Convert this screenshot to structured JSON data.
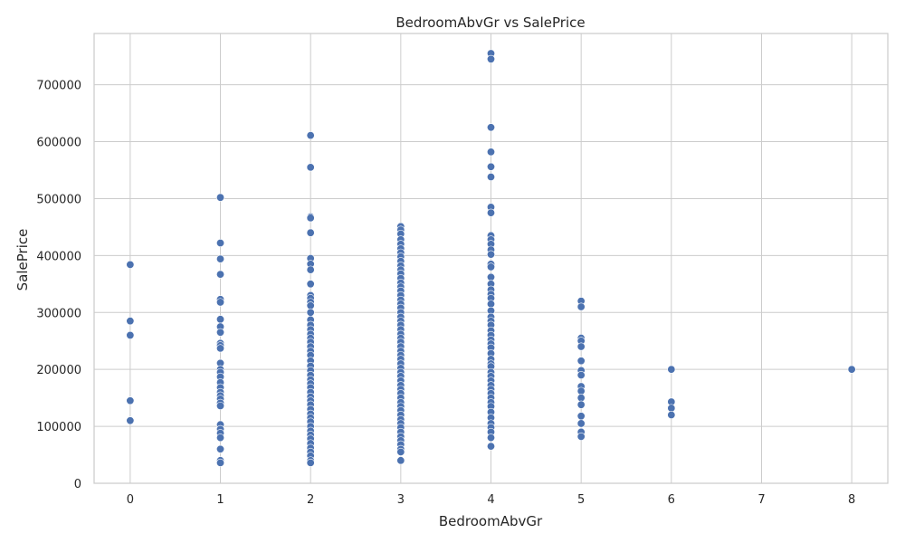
{
  "chart_data": {
    "type": "scatter",
    "title": "BedroomAbvGr vs SalePrice",
    "xlabel": "BedroomAbvGr",
    "ylabel": "SalePrice",
    "xlim": [
      -0.4,
      8.4
    ],
    "ylim": [
      0,
      790000
    ],
    "xticks": [
      0,
      1,
      2,
      3,
      4,
      5,
      6,
      7,
      8
    ],
    "yticks": [
      0,
      100000,
      200000,
      300000,
      400000,
      500000,
      600000,
      700000
    ],
    "grid": true,
    "marker_color": "#4c72b0",
    "points": [
      [
        0,
        384000
      ],
      [
        0,
        285000
      ],
      [
        0,
        260000
      ],
      [
        0,
        145000
      ],
      [
        0,
        110000
      ],
      [
        1,
        502000
      ],
      [
        1,
        422000
      ],
      [
        1,
        394000
      ],
      [
        1,
        367000
      ],
      [
        1,
        323000
      ],
      [
        1,
        318000
      ],
      [
        1,
        288000
      ],
      [
        1,
        275000
      ],
      [
        1,
        265000
      ],
      [
        1,
        246000
      ],
      [
        1,
        242000
      ],
      [
        1,
        237000
      ],
      [
        1,
        211000
      ],
      [
        1,
        200000
      ],
      [
        1,
        195000
      ],
      [
        1,
        187000
      ],
      [
        1,
        177000
      ],
      [
        1,
        168000
      ],
      [
        1,
        160000
      ],
      [
        1,
        154000
      ],
      [
        1,
        148000
      ],
      [
        1,
        141000
      ],
      [
        1,
        136000
      ],
      [
        1,
        103000
      ],
      [
        1,
        95000
      ],
      [
        1,
        88000
      ],
      [
        1,
        80000
      ],
      [
        1,
        60000
      ],
      [
        1,
        40000
      ],
      [
        1,
        36000
      ],
      [
        2,
        611000
      ],
      [
        2,
        555000
      ],
      [
        2,
        468000
      ],
      [
        2,
        466000
      ],
      [
        2,
        440000
      ],
      [
        2,
        395000
      ],
      [
        2,
        385000
      ],
      [
        2,
        375000
      ],
      [
        2,
        350000
      ],
      [
        2,
        330000
      ],
      [
        2,
        325000
      ],
      [
        2,
        318000
      ],
      [
        2,
        312000
      ],
      [
        2,
        300000
      ],
      [
        2,
        287000
      ],
      [
        2,
        278000
      ],
      [
        2,
        270000
      ],
      [
        2,
        262000
      ],
      [
        2,
        255000
      ],
      [
        2,
        248000
      ],
      [
        2,
        240000
      ],
      [
        2,
        232000
      ],
      [
        2,
        225000
      ],
      [
        2,
        215000
      ],
      [
        2,
        206000
      ],
      [
        2,
        198000
      ],
      [
        2,
        190000
      ],
      [
        2,
        182000
      ],
      [
        2,
        175000
      ],
      [
        2,
        168000
      ],
      [
        2,
        160000
      ],
      [
        2,
        152000
      ],
      [
        2,
        145000
      ],
      [
        2,
        138000
      ],
      [
        2,
        130000
      ],
      [
        2,
        122000
      ],
      [
        2,
        115000
      ],
      [
        2,
        108000
      ],
      [
        2,
        100000
      ],
      [
        2,
        92000
      ],
      [
        2,
        85000
      ],
      [
        2,
        78000
      ],
      [
        2,
        70000
      ],
      [
        2,
        62000
      ],
      [
        2,
        55000
      ],
      [
        2,
        48000
      ],
      [
        2,
        40000
      ],
      [
        2,
        36000
      ],
      [
        3,
        451000
      ],
      [
        3,
        445000
      ],
      [
        3,
        438000
      ],
      [
        3,
        428000
      ],
      [
        3,
        420000
      ],
      [
        3,
        412000
      ],
      [
        3,
        405000
      ],
      [
        3,
        398000
      ],
      [
        3,
        390000
      ],
      [
        3,
        382000
      ],
      [
        3,
        375000
      ],
      [
        3,
        368000
      ],
      [
        3,
        360000
      ],
      [
        3,
        352000
      ],
      [
        3,
        345000
      ],
      [
        3,
        338000
      ],
      [
        3,
        330000
      ],
      [
        3,
        322000
      ],
      [
        3,
        315000
      ],
      [
        3,
        308000
      ],
      [
        3,
        300000
      ],
      [
        3,
        292000
      ],
      [
        3,
        285000
      ],
      [
        3,
        278000
      ],
      [
        3,
        270000
      ],
      [
        3,
        262000
      ],
      [
        3,
        255000
      ],
      [
        3,
        248000
      ],
      [
        3,
        240000
      ],
      [
        3,
        232000
      ],
      [
        3,
        225000
      ],
      [
        3,
        218000
      ],
      [
        3,
        210000
      ],
      [
        3,
        202000
      ],
      [
        3,
        195000
      ],
      [
        3,
        188000
      ],
      [
        3,
        180000
      ],
      [
        3,
        172000
      ],
      [
        3,
        165000
      ],
      [
        3,
        158000
      ],
      [
        3,
        150000
      ],
      [
        3,
        142000
      ],
      [
        3,
        135000
      ],
      [
        3,
        128000
      ],
      [
        3,
        120000
      ],
      [
        3,
        112000
      ],
      [
        3,
        105000
      ],
      [
        3,
        98000
      ],
      [
        3,
        90000
      ],
      [
        3,
        82000
      ],
      [
        3,
        75000
      ],
      [
        3,
        68000
      ],
      [
        3,
        60000
      ],
      [
        3,
        55000
      ],
      [
        3,
        40000
      ],
      [
        4,
        755000
      ],
      [
        4,
        745000
      ],
      [
        4,
        625000
      ],
      [
        4,
        582000
      ],
      [
        4,
        556000
      ],
      [
        4,
        538000
      ],
      [
        4,
        485000
      ],
      [
        4,
        475000
      ],
      [
        4,
        435000
      ],
      [
        4,
        428000
      ],
      [
        4,
        420000
      ],
      [
        4,
        410000
      ],
      [
        4,
        402000
      ],
      [
        4,
        385000
      ],
      [
        4,
        380000
      ],
      [
        4,
        362000
      ],
      [
        4,
        350000
      ],
      [
        4,
        340000
      ],
      [
        4,
        332000
      ],
      [
        4,
        325000
      ],
      [
        4,
        315000
      ],
      [
        4,
        303000
      ],
      [
        4,
        292000
      ],
      [
        4,
        285000
      ],
      [
        4,
        278000
      ],
      [
        4,
        268000
      ],
      [
        4,
        260000
      ],
      [
        4,
        252000
      ],
      [
        4,
        245000
      ],
      [
        4,
        238000
      ],
      [
        4,
        228000
      ],
      [
        4,
        218000
      ],
      [
        4,
        210000
      ],
      [
        4,
        205000
      ],
      [
        4,
        195000
      ],
      [
        4,
        188000
      ],
      [
        4,
        180000
      ],
      [
        4,
        172000
      ],
      [
        4,
        165000
      ],
      [
        4,
        158000
      ],
      [
        4,
        150000
      ],
      [
        4,
        142000
      ],
      [
        4,
        135000
      ],
      [
        4,
        125000
      ],
      [
        4,
        115000
      ],
      [
        4,
        105000
      ],
      [
        4,
        98000
      ],
      [
        4,
        90000
      ],
      [
        4,
        80000
      ],
      [
        4,
        65000
      ],
      [
        5,
        320000
      ],
      [
        5,
        310000
      ],
      [
        5,
        255000
      ],
      [
        5,
        250000
      ],
      [
        5,
        240000
      ],
      [
        5,
        215000
      ],
      [
        5,
        198000
      ],
      [
        5,
        190000
      ],
      [
        5,
        170000
      ],
      [
        5,
        162000
      ],
      [
        5,
        150000
      ],
      [
        5,
        138000
      ],
      [
        5,
        118000
      ],
      [
        5,
        105000
      ],
      [
        5,
        90000
      ],
      [
        5,
        82000
      ],
      [
        6,
        200000
      ],
      [
        6,
        143000
      ],
      [
        6,
        132000
      ],
      [
        6,
        120000
      ],
      [
        8,
        200000
      ]
    ]
  }
}
